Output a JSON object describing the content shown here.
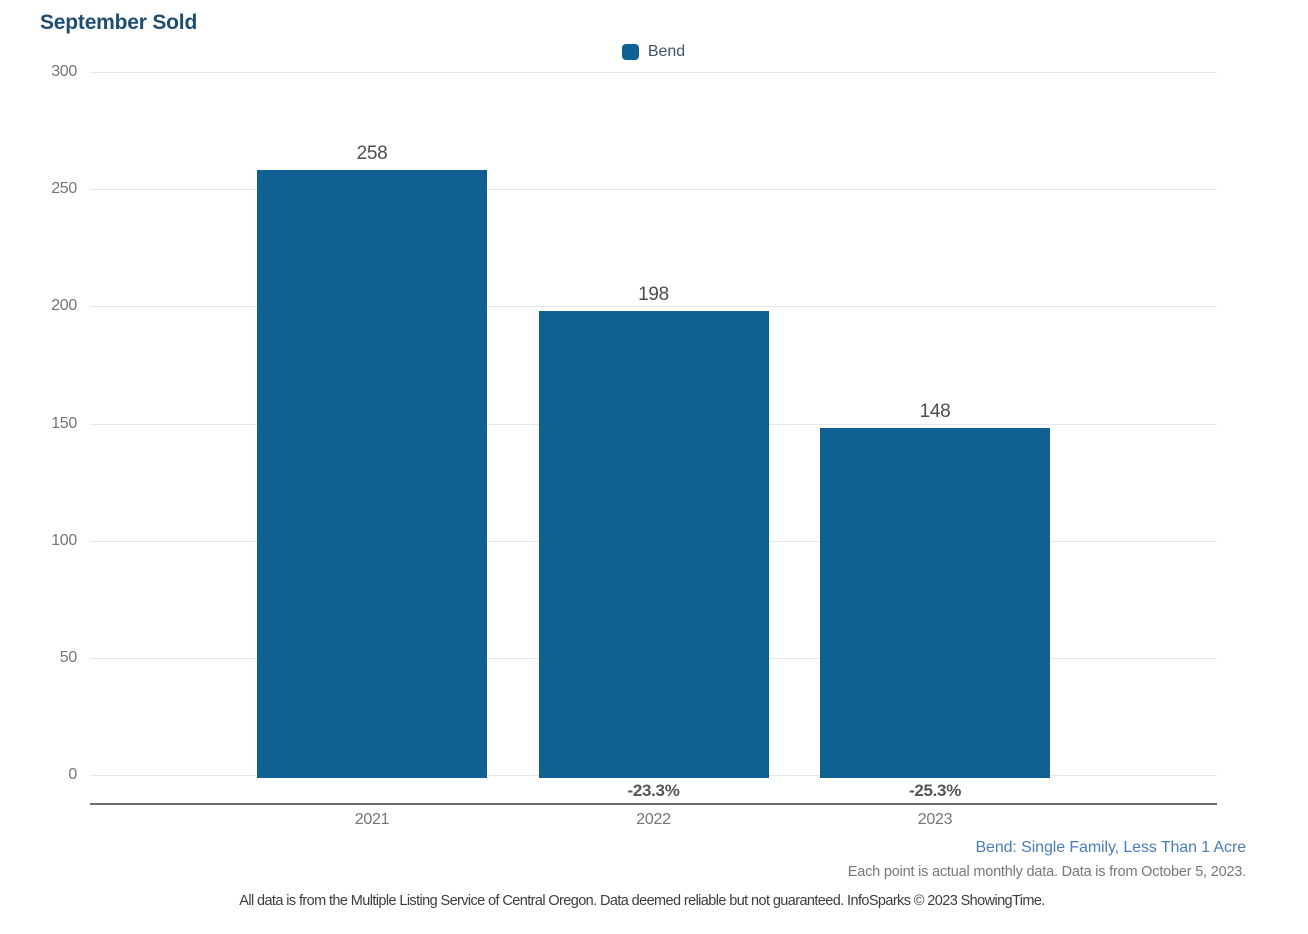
{
  "title": "September Sold",
  "legend": {
    "label": "Bend",
    "swatch_color": "#106191"
  },
  "chart_data": {
    "type": "bar",
    "title": "September Sold",
    "categories": [
      "2021",
      "2022",
      "2023"
    ],
    "series": [
      {
        "name": "Bend",
        "color": "#106191",
        "values": [
          258,
          198,
          148
        ]
      }
    ],
    "bar_value_labels": [
      "258",
      "198",
      "148"
    ],
    "pct_change_labels": [
      "",
      "-23.3%",
      "-25.3%"
    ],
    "xlabel": "",
    "ylabel": "",
    "ylim": [
      0,
      300
    ],
    "yticks": [
      0,
      50,
      100,
      150,
      200,
      250,
      300
    ],
    "grid": "horizontal",
    "legend_position": "top-center"
  },
  "footnotes": {
    "series_description": "Bend: Single Family, Less Than 1 Acre",
    "data_note": "Each point is actual monthly data. Data is from October 5, 2023.",
    "disclaimer": "All data is from the Multiple Listing Service of Central Oregon. Data deemed reliable but not guaranteed. InfoSparks © 2023 ShowingTime."
  },
  "colors": {
    "bar": "#106191",
    "title": "#1e4d71",
    "legend_text": "#3d566b",
    "gridline": "#e7e7e7",
    "axis_line": "#6e6e6e",
    "tick_label": "#757575",
    "value_label": "#4d4d4d",
    "pct_label": "#555555",
    "footnote_blue": "#4a7ebb",
    "footnote_gray": "#777777",
    "disclaimer_text": "#3d3d3d"
  }
}
